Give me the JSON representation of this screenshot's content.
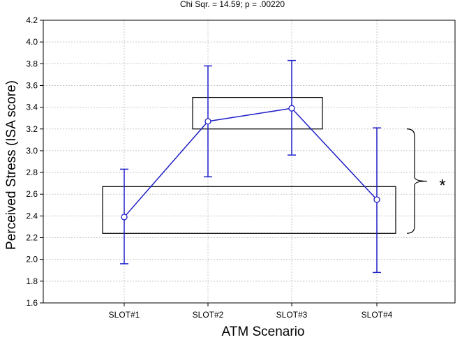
{
  "chart_data": {
    "type": "line",
    "subtitle": "Chi Sqr. = 14.59; p = .00220",
    "xlabel": "ATM Scenario",
    "ylabel": "Perceived Stress (ISA score)",
    "categories": [
      "SLOT#1",
      "SLOT#2",
      "SLOT#3",
      "SLOT#4"
    ],
    "series": [
      {
        "values": [
          2.39,
          3.27,
          3.39,
          2.55
        ],
        "error_low": [
          1.96,
          2.76,
          2.96,
          1.88
        ],
        "error_high": [
          2.83,
          3.78,
          3.83,
          3.21
        ],
        "color": "#1f1fc8"
      }
    ],
    "ylim": [
      1.6,
      4.2
    ],
    "yticks": [
      "1.6",
      "1.8",
      "2.0",
      "2.2",
      "2.4",
      "2.6",
      "2.8",
      "3.0",
      "3.2",
      "3.4",
      "3.6",
      "3.8",
      "4.0",
      "4.2"
    ],
    "grid": true,
    "annotations": {
      "group_box_high": {
        "categories": [
          "SLOT#2",
          "SLOT#3"
        ],
        "ymin": 3.2,
        "ymax": 3.49
      },
      "group_box_low": {
        "categories": [
          "SLOT#1",
          "SLOT#4"
        ],
        "ymin": 2.24,
        "ymax": 2.67
      },
      "significance_marker": "*"
    }
  }
}
